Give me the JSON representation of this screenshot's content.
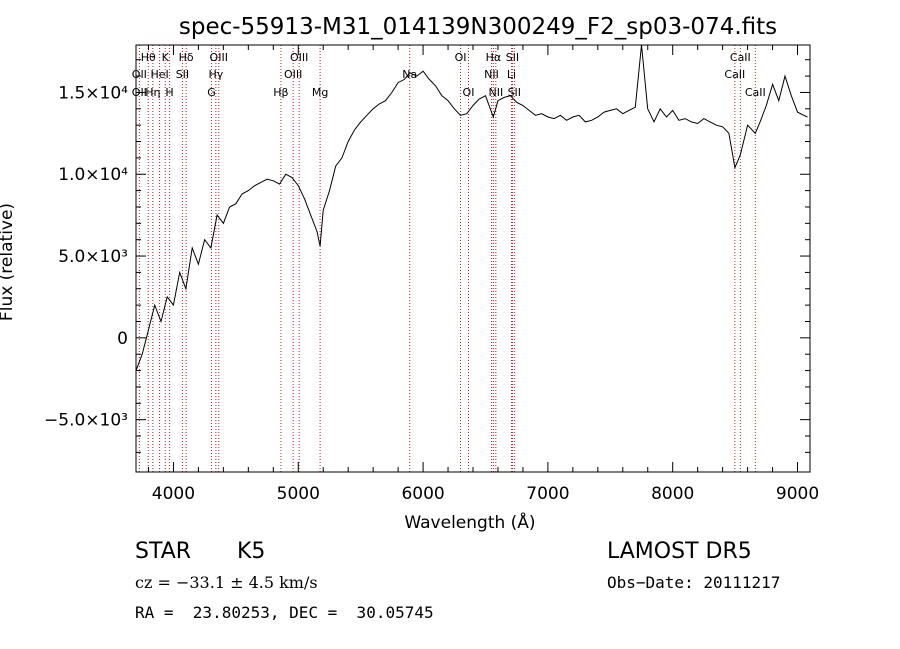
{
  "chart_data": {
    "type": "line",
    "title": "spec-55913-M31_014139N300249_F2_sp03-074.fits",
    "xlabel": "Wavelength (Å)",
    "ylabel": "Flux (relative)",
    "xlim": [
      3700,
      9100
    ],
    "ylim": [
      -8200,
      17900
    ],
    "xticks": [
      {
        "value": 4000,
        "label": "4000"
      },
      {
        "value": 5000,
        "label": "5000"
      },
      {
        "value": 6000,
        "label": "6000"
      },
      {
        "value": 7000,
        "label": "7000"
      },
      {
        "value": 8000,
        "label": "8000"
      },
      {
        "value": 9000,
        "label": "9000"
      }
    ],
    "yticks": [
      {
        "value": 15000,
        "label": "1.5×10⁴"
      },
      {
        "value": 10000,
        "label": "1.0×10⁴"
      },
      {
        "value": 5000,
        "label": "5.0×10³"
      },
      {
        "value": 0,
        "label": "0"
      },
      {
        "value": -5000,
        "label": "−5.0×10³"
      }
    ],
    "grid": false,
    "series": [
      {
        "x": [
          3700,
          3750,
          3800,
          3850,
          3900,
          3950,
          4000,
          4050,
          4100,
          4150,
          4200,
          4250,
          4300,
          4350,
          4400,
          4450,
          4500,
          4550,
          4600,
          4650,
          4700,
          4750,
          4800,
          4850,
          4900,
          4950,
          5000,
          5050,
          5100,
          5150,
          5175,
          5200,
          5250,
          5300,
          5350,
          5400,
          5450,
          5500,
          5550,
          5600,
          5650,
          5700,
          5750,
          5800,
          5850,
          5893,
          5950,
          6000,
          6050,
          6100,
          6150,
          6200,
          6250,
          6300,
          6350,
          6400,
          6450,
          6500,
          6563,
          6600,
          6650,
          6700,
          6750,
          6800,
          6850,
          6900,
          6950,
          7000,
          7050,
          7100,
          7150,
          7200,
          7250,
          7300,
          7350,
          7400,
          7450,
          7500,
          7550,
          7600,
          7650,
          7700,
          7750,
          7800,
          7850,
          7900,
          7950,
          8000,
          8050,
          8100,
          8150,
          8200,
          8250,
          8300,
          8350,
          8400,
          8450,
          8498,
          8542,
          8600,
          8662,
          8700,
          8750,
          8800,
          8850,
          8900,
          8950,
          9000,
          9050,
          9080
        ],
        "y": [
          -2000,
          -1000,
          500,
          2000,
          1000,
          2500,
          2000,
          4000,
          3000,
          5500,
          4500,
          6000,
          5500,
          7500,
          7000,
          8000,
          8200,
          8800,
          9000,
          9300,
          9500,
          9700,
          9600,
          9400,
          10000,
          9800,
          9300,
          8500,
          7500,
          6500,
          5600,
          7800,
          9000,
          10500,
          11000,
          12000,
          12700,
          13200,
          13600,
          14000,
          14300,
          14500,
          15000,
          15600,
          15800,
          16200,
          16000,
          16300,
          15800,
          15400,
          14800,
          14500,
          14000,
          13600,
          13700,
          14200,
          14600,
          14800,
          13500,
          14500,
          14700,
          14800,
          14400,
          14200,
          13900,
          13600,
          13700,
          13500,
          13400,
          13600,
          13300,
          13500,
          13600,
          13200,
          13300,
          13500,
          13800,
          13900,
          14000,
          13700,
          13900,
          14100,
          18000,
          14000,
          13200,
          14000,
          13500,
          13900,
          13300,
          13400,
          13200,
          13100,
          13400,
          13200,
          13000,
          12900,
          12500,
          10400,
          11200,
          13000,
          12500,
          13200,
          14200,
          15500,
          14500,
          16000,
          14800,
          13800,
          13600,
          13500
        ]
      }
    ],
    "lines": [
      {
        "label": "Hθ",
        "x": 3798,
        "row": 0
      },
      {
        "label": "OII",
        "x": 3727,
        "row": 1
      },
      {
        "label": "OII",
        "x": 3727,
        "row": 2
      },
      {
        "label": "Hη",
        "x": 3835,
        "row": 2
      },
      {
        "label": "K",
        "x": 3934,
        "row": 0
      },
      {
        "label": "HeI",
        "x": 3889,
        "row": 1
      },
      {
        "label": "H",
        "x": 3969,
        "row": 2
      },
      {
        "label": "Hδ",
        "x": 4102,
        "row": 0
      },
      {
        "label": "SII",
        "x": 4072,
        "row": 1
      },
      {
        "label": "OIII",
        "x": 4363,
        "row": 0
      },
      {
        "label": "Hγ",
        "x": 4340,
        "row": 1
      },
      {
        "label": "G",
        "x": 4305,
        "row": 2
      },
      {
        "label": "OIII",
        "x": 5007,
        "row": 0
      },
      {
        "label": "OIII",
        "x": 4959,
        "row": 1
      },
      {
        "label": "Hβ",
        "x": 4861,
        "row": 2
      },
      {
        "label": "Mg",
        "x": 5175,
        "row": 2
      },
      {
        "label": "Na",
        "x": 5893,
        "row": 1
      },
      {
        "label": "OI",
        "x": 6300,
        "row": 0
      },
      {
        "label": "OI",
        "x": 6364,
        "row": 2
      },
      {
        "label": "Hα",
        "x": 6563,
        "row": 0
      },
      {
        "label": "NII",
        "x": 6548,
        "row": 1
      },
      {
        "label": "NII",
        "x": 6583,
        "row": 2
      },
      {
        "label": "SII",
        "x": 6716,
        "row": 0
      },
      {
        "label": "Li",
        "x": 6708,
        "row": 1
      },
      {
        "label": "SII",
        "x": 6731,
        "row": 2
      },
      {
        "label": "CaII",
        "x": 8542,
        "row": 0
      },
      {
        "label": "CaII",
        "x": 8498,
        "row": 1
      },
      {
        "label": "CaII",
        "x": 8662,
        "row": 2
      }
    ]
  },
  "info": {
    "class_label": "STAR",
    "subclass_label": "K5",
    "survey_label": "LAMOST DR5",
    "cz_text": "cz = −33.1 ± 4.5 km/s",
    "obs_date_text": "Obs−Date: 20111217",
    "coords_text": "RA =  23.80253, DEC =  30.05745"
  }
}
